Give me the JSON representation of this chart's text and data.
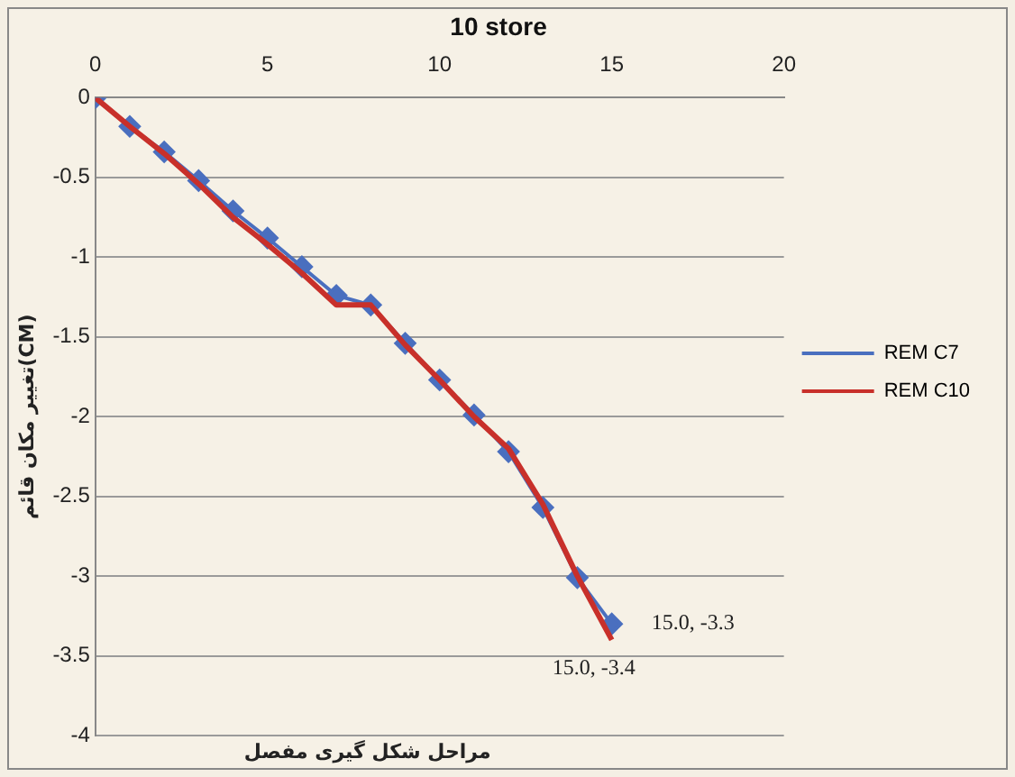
{
  "chart_data": {
    "type": "line",
    "title": "10 store",
    "xlabel": "مراحل شکل گیری مفصل",
    "ylabel": "تغییر مکان قائم(CM)",
    "x": [
      0,
      1,
      2,
      3,
      4,
      5,
      6,
      7,
      8,
      9,
      10,
      11,
      12,
      13,
      14,
      15
    ],
    "series": [
      {
        "name": "REM C7",
        "color": "#4a6fbf",
        "marker": "diamond",
        "values": [
          0,
          -0.18,
          -0.34,
          -0.52,
          -0.71,
          -0.88,
          -1.06,
          -1.24,
          -1.3,
          -1.54,
          -1.77,
          -1.99,
          -2.22,
          -2.57,
          -3.01,
          -3.3
        ]
      },
      {
        "name": "REM C10",
        "color": "#c8302a",
        "marker": "none",
        "values": [
          0,
          -0.18,
          -0.35,
          -0.54,
          -0.75,
          -0.92,
          -1.1,
          -1.3,
          -1.3,
          -1.55,
          -1.77,
          -2.0,
          -2.2,
          -2.55,
          -3.0,
          -3.4
        ]
      }
    ],
    "xlim": [
      0,
      20
    ],
    "xticks": [
      0,
      5,
      10,
      15,
      20
    ],
    "ylim": [
      -4,
      0
    ],
    "yticks": [
      0,
      -0.5,
      -1,
      -1.5,
      -2,
      -2.5,
      -3,
      -3.5,
      -4
    ],
    "grid": "y",
    "legend": "right",
    "annotations": [
      {
        "text": "15.0, -3.3",
        "x": 15,
        "y": -3.3
      },
      {
        "text": "15.0, -3.4",
        "x": 15,
        "y": -3.4
      }
    ]
  }
}
